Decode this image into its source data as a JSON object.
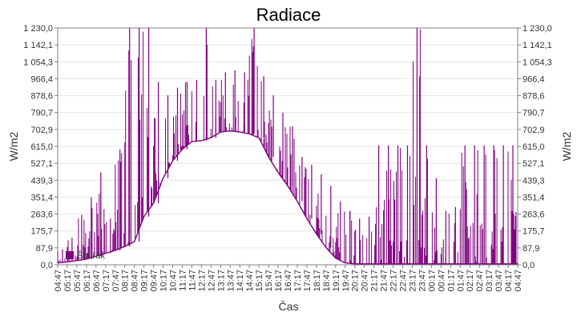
{
  "chart_data": {
    "type": "line",
    "title": "Radiace",
    "xlabel": "Čas",
    "ylabel": "W/m2",
    "ylim": [
      0,
      1230
    ],
    "y_ticks": [
      "0,0",
      "87,9",
      "175,7",
      "263,6",
      "351,4",
      "439,3",
      "527,1",
      "615,0",
      "702,9",
      "790,7",
      "878,6",
      "966,4",
      "1 054,3",
      "1 142,1",
      "1 230,0"
    ],
    "categories": [
      "04:47",
      "05:17",
      "05:47",
      "06:17",
      "06:47",
      "07:17",
      "07:47",
      "08:17",
      "08:47",
      "09:17",
      "09:47",
      "10:17",
      "10:47",
      "11:17",
      "11:47",
      "12:17",
      "12:47",
      "13:17",
      "13:47",
      "14:17",
      "14:47",
      "15:17",
      "15:47",
      "16:17",
      "16:47",
      "17:17",
      "17:47",
      "18:17",
      "18:47",
      "19:17",
      "19:47",
      "20:17",
      "20:47",
      "21:17",
      "21:47",
      "22:17",
      "22:47",
      "23:17",
      "23:47",
      "00:17",
      "00:47",
      "01:17",
      "01:47",
      "02:17",
      "02:47",
      "03:17",
      "03:47",
      "04:17",
      "04:47"
    ],
    "grid": true,
    "legend_position": "bottom-left",
    "series": [
      {
        "name": "Šouřák",
        "color": "#800080",
        "base": [
          10,
          15,
          22,
          30,
          45,
          60,
          75,
          95,
          120,
          250,
          320,
          450,
          540,
          600,
          640,
          645,
          660,
          690,
          695,
          690,
          680,
          660,
          560,
          480,
          410,
          330,
          240,
          160,
          90,
          35,
          10,
          5,
          5,
          5,
          5,
          5,
          5,
          5,
          5,
          5,
          5,
          5,
          5,
          5,
          5,
          5,
          5,
          5,
          5
        ],
        "peaks": [
          80,
          140,
          260,
          350,
          480,
          240,
          600,
          1230,
          1230,
          1230,
          950,
          880,
          920,
          950,
          960,
          1230,
          960,
          1000,
          1010,
          1000,
          1230,
          980,
          880,
          790,
          720,
          560,
          520,
          470,
          410,
          330,
          280,
          240,
          250,
          620,
          620,
          620,
          620,
          1230,
          620,
          450,
          280,
          300,
          620,
          620,
          620,
          620,
          620,
          620,
          620
        ]
      }
    ]
  }
}
